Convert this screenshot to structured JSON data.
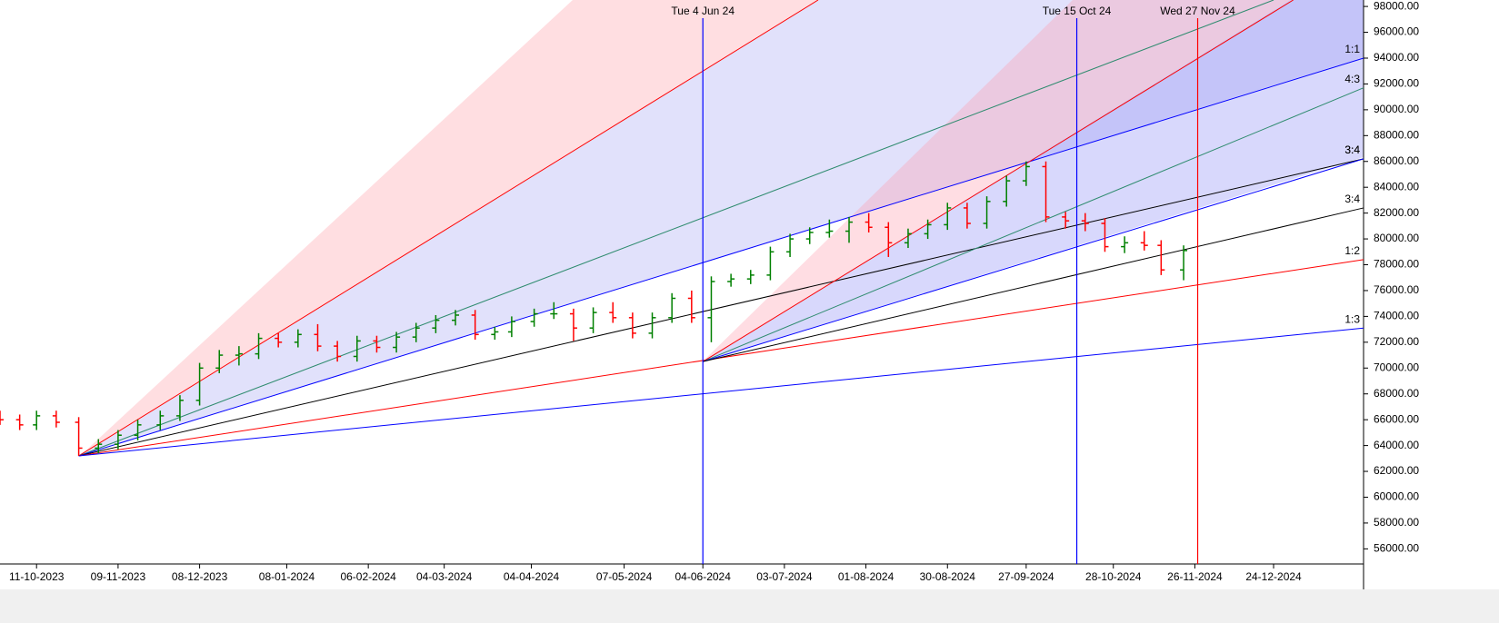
{
  "chart_data": {
    "type": "ohlc",
    "xlim": [
      "2023-09-28",
      "2025-01-25"
    ],
    "ylim": [
      54900,
      98500
    ],
    "xticks": [
      {
        "value": "2023-10-11",
        "label": "11-10-2023"
      },
      {
        "value": "2023-11-09",
        "label": "09-11-2023"
      },
      {
        "value": "2023-12-08",
        "label": "08-12-2023"
      },
      {
        "value": "2024-01-08",
        "label": "08-01-2024"
      },
      {
        "value": "2024-02-06",
        "label": "06-02-2024"
      },
      {
        "value": "2024-03-04",
        "label": "04-03-2024"
      },
      {
        "value": "2024-04-04",
        "label": "04-04-2024"
      },
      {
        "value": "2024-05-07",
        "label": "07-05-2024"
      },
      {
        "value": "2024-06-04",
        "label": "04-06-2024"
      },
      {
        "value": "2024-07-03",
        "label": "03-07-2024"
      },
      {
        "value": "2024-08-01",
        "label": "01-08-2024"
      },
      {
        "value": "2024-08-30",
        "label": "30-08-2024"
      },
      {
        "value": "2024-09-27",
        "label": "27-09-2024"
      },
      {
        "value": "2024-10-28",
        "label": "28-10-2024"
      },
      {
        "value": "2024-11-26",
        "label": "26-11-2024"
      },
      {
        "value": "2024-12-24",
        "label": "24-12-2024"
      }
    ],
    "yticks": [
      {
        "value": 56000,
        "label": "56000.00"
      },
      {
        "value": 58000,
        "label": "58000.00"
      },
      {
        "value": 60000,
        "label": "60000.00"
      },
      {
        "value": 62000,
        "label": "62000.00"
      },
      {
        "value": 64000,
        "label": "64000.00"
      },
      {
        "value": 66000,
        "label": "66000.00"
      },
      {
        "value": 68000,
        "label": "68000.00"
      },
      {
        "value": 70000,
        "label": "70000.00"
      },
      {
        "value": 72000,
        "label": "72000.00"
      },
      {
        "value": 74000,
        "label": "74000.00"
      },
      {
        "value": 76000,
        "label": "76000.00"
      },
      {
        "value": 78000,
        "label": "78000.00"
      },
      {
        "value": 80000,
        "label": "80000.00"
      },
      {
        "value": 82000,
        "label": "82000.00"
      },
      {
        "value": 84000,
        "label": "84000.00"
      },
      {
        "value": 86000,
        "label": "86000.00"
      },
      {
        "value": 88000,
        "label": "88000.00"
      },
      {
        "value": 90000,
        "label": "90000.00"
      },
      {
        "value": 92000,
        "label": "92000.00"
      },
      {
        "value": 94000,
        "label": "94000.00"
      },
      {
        "value": 96000,
        "label": "96000.00"
      },
      {
        "value": 98000,
        "label": "98000.00"
      }
    ],
    "up_color": "#008000",
    "down_color": "#ff0000",
    "x": [
      "2023-09-28",
      "2023-10-05",
      "2023-10-11",
      "2023-10-18",
      "2023-10-26",
      "2023-11-02",
      "2023-11-09",
      "2023-11-16",
      "2023-11-24",
      "2023-12-01",
      "2023-12-08",
      "2023-12-15",
      "2023-12-22",
      "2023-12-29",
      "2024-01-05",
      "2024-01-12",
      "2024-01-19",
      "2024-01-26",
      "2024-02-02",
      "2024-02-09",
      "2024-02-16",
      "2024-02-23",
      "2024-03-01",
      "2024-03-08",
      "2024-03-15",
      "2024-03-22",
      "2024-03-28",
      "2024-04-05",
      "2024-04-12",
      "2024-04-19",
      "2024-04-26",
      "2024-05-03",
      "2024-05-10",
      "2024-05-17",
      "2024-05-24",
      "2024-05-31",
      "2024-06-07",
      "2024-06-14",
      "2024-06-21",
      "2024-06-28",
      "2024-07-05",
      "2024-07-12",
      "2024-07-19",
      "2024-07-26",
      "2024-08-02",
      "2024-08-09",
      "2024-08-16",
      "2024-08-23",
      "2024-08-30",
      "2024-09-06",
      "2024-09-13",
      "2024-09-20",
      "2024-09-27",
      "2024-10-04",
      "2024-10-11",
      "2024-10-18",
      "2024-10-25",
      "2024-11-01",
      "2024-11-08",
      "2024-11-14",
      "2024-11-22"
    ],
    "open": [
      66300,
      66000,
      65600,
      66300,
      65800,
      63800,
      64100,
      64800,
      65600,
      66300,
      67500,
      70000,
      71000,
      71100,
      72300,
      72000,
      72600,
      71700,
      70900,
      72100,
      71600,
      72400,
      73100,
      73700,
      74100,
      72600,
      72800,
      73600,
      74200,
      74200,
      73100,
      74300,
      73900,
      72700,
      73900,
      75400,
      73900,
      76700,
      76900,
      77200,
      79000,
      80000,
      80500,
      80600,
      81300,
      80900,
      79700,
      80400,
      81100,
      82400,
      81200,
      82900,
      84500,
      85600,
      81700,
      81400,
      81200,
      79400,
      79700,
      79500,
      77600
    ],
    "high": [
      66700,
      66400,
      66700,
      66700,
      66200,
      64500,
      65200,
      66000,
      66700,
      67900,
      70400,
      71400,
      71700,
      72700,
      72700,
      73000,
      73400,
      72100,
      72500,
      72500,
      72800,
      73500,
      74100,
      74500,
      74500,
      73200,
      74000,
      74600,
      75100,
      74600,
      74700,
      75100,
      74300,
      74300,
      75800,
      76000,
      77100,
      77300,
      77600,
      79400,
      80400,
      80900,
      81500,
      81700,
      82000,
      81300,
      80800,
      81500,
      82800,
      82800,
      83300,
      84900,
      86000,
      86000,
      82100,
      82000,
      81600,
      80200,
      80600,
      79900,
      79500
    ],
    "low": [
      65600,
      65200,
      65200,
      65400,
      63200,
      63400,
      63700,
      64400,
      65200,
      65900,
      67100,
      69600,
      70200,
      70700,
      71600,
      71600,
      71300,
      70500,
      70500,
      71200,
      71200,
      72000,
      72700,
      73300,
      72200,
      72200,
      72400,
      73200,
      73800,
      72100,
      72700,
      73500,
      72300,
      72300,
      73500,
      73500,
      72000,
      76300,
      76500,
      76800,
      78600,
      79600,
      80100,
      79700,
      80500,
      78600,
      79300,
      80000,
      80700,
      80800,
      80800,
      82500,
      84100,
      81300,
      80800,
      80600,
      79000,
      78900,
      79100,
      77200,
      76800
    ],
    "close": [
      66000,
      65600,
      66300,
      65800,
      63800,
      64100,
      64800,
      65600,
      66300,
      67500,
      70000,
      71000,
      71100,
      72300,
      72000,
      72600,
      71700,
      70900,
      72100,
      71600,
      72400,
      73100,
      73700,
      74100,
      72600,
      72800,
      73600,
      74200,
      74200,
      73100,
      74300,
      73900,
      72700,
      73900,
      75400,
      73900,
      76700,
      76900,
      77200,
      79000,
      80000,
      80500,
      80600,
      81300,
      80900,
      79700,
      80400,
      81100,
      82400,
      81200,
      82900,
      84500,
      85600,
      81700,
      81400,
      81200,
      79400,
      79700,
      79500,
      77600,
      79100
    ],
    "fan_lines": [
      {
        "color": "#ff0000",
        "x": [
          "2023-10-26",
          "2024-07-15"
        ],
        "y": [
          63200,
          98500
        ]
      },
      {
        "color": "#2e8b6e",
        "x": [
          "2023-10-26",
          "2024-12-24"
        ],
        "y": [
          63200,
          98500
        ]
      },
      {
        "color": "#0000ff",
        "x": [
          "2023-10-26",
          "2025-01-25"
        ],
        "y": [
          63200,
          94000
        ],
        "label": "1:1"
      },
      {
        "color": "#000000",
        "x": [
          "2023-10-26",
          "2025-01-25"
        ],
        "y": [
          63200,
          86200
        ],
        "label": "3:4"
      },
      {
        "color": "#ff0000",
        "x": [
          "2023-10-26",
          "2025-01-25"
        ],
        "y": [
          63200,
          78400
        ],
        "label": "1:2"
      },
      {
        "color": "#0000ff",
        "x": [
          "2023-10-26",
          "2025-01-25"
        ],
        "y": [
          63200,
          73100
        ],
        "label": "1:3"
      },
      {
        "color": "#ff0000",
        "x": [
          "2024-06-04",
          "2024-12-31"
        ],
        "y": [
          70500,
          98500
        ]
      },
      {
        "color": "#2e8b6e",
        "x": [
          "2024-06-04",
          "2025-01-25"
        ],
        "y": [
          70500,
          91700
        ],
        "label": "4:3"
      },
      {
        "color": "#0000ff",
        "x": [
          "2024-06-04",
          "2025-01-25"
        ],
        "y": [
          70500,
          86200
        ],
        "label": "3:4"
      },
      {
        "color": "#000000",
        "x": [
          "2024-06-04",
          "2025-01-25"
        ],
        "y": [
          70500,
          82400
        ],
        "label": "3:4"
      }
    ],
    "markers": [
      {
        "x": "2024-06-04",
        "label": "Tue 4 Jun 24",
        "color": "#0000ff"
      },
      {
        "x": "2024-10-15",
        "label": "Tue 15 Oct 24",
        "color": "#0000ff"
      },
      {
        "x": "2024-11-27",
        "label": "Wed 27 Nov 24",
        "color": "#ff0000"
      }
    ]
  }
}
